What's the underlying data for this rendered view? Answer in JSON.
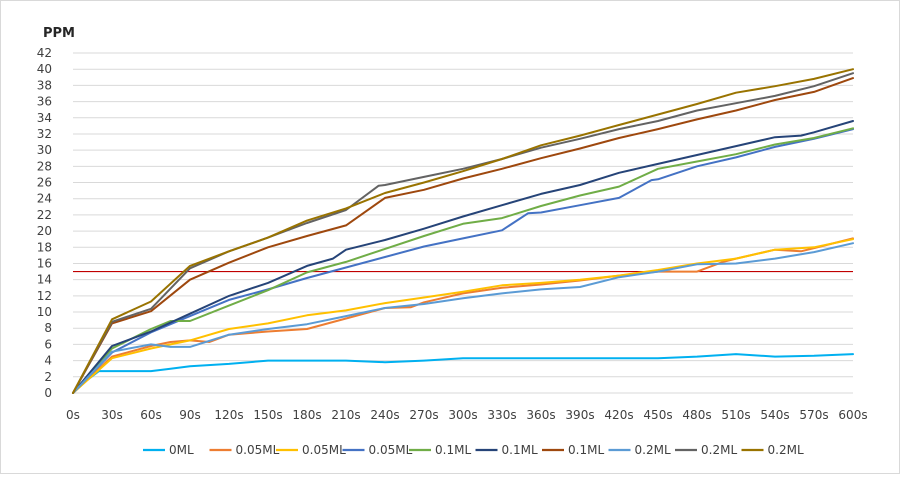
{
  "chart_data": {
    "type": "line",
    "ylabel": "PPM",
    "xlabel": "",
    "ylim": [
      0,
      42
    ],
    "yticks": [
      0,
      2,
      4,
      6,
      8,
      10,
      12,
      14,
      16,
      18,
      20,
      22,
      24,
      26,
      28,
      30,
      32,
      34,
      36,
      38,
      40,
      42
    ],
    "grid": true,
    "legend": "bottom",
    "x": [
      0,
      30,
      60,
      90,
      120,
      150,
      180,
      210,
      240,
      270,
      300,
      330,
      360,
      390,
      420,
      450,
      480,
      510,
      540,
      570,
      600
    ],
    "x_tick_labels": [
      "0s",
      "30s",
      "60s",
      "90s",
      "120s",
      "150s",
      "180s",
      "210s",
      "240s",
      "270s",
      "300s",
      "330s",
      "360s",
      "390s",
      "420s",
      "450s",
      "480s",
      "510s",
      "540s",
      "570s",
      "600s"
    ],
    "reference_line": {
      "y": 15,
      "color": "#c00000"
    },
    "series": [
      {
        "name": "0ML",
        "color": "#00b0f0",
        "points": [
          [
            0,
            0
          ],
          [
            10,
            1.5
          ],
          [
            20,
            2.7
          ],
          [
            30,
            2.7
          ],
          [
            45,
            2.7
          ],
          [
            60,
            2.7
          ],
          [
            75,
            3.0
          ],
          [
            90,
            3.3
          ],
          [
            120,
            3.6
          ],
          [
            150,
            4.0
          ],
          [
            180,
            4.0
          ],
          [
            210,
            4.0
          ],
          [
            240,
            3.8
          ],
          [
            270,
            4.0
          ],
          [
            300,
            4.3
          ],
          [
            330,
            4.3
          ],
          [
            360,
            4.3
          ],
          [
            390,
            4.3
          ],
          [
            420,
            4.3
          ],
          [
            450,
            4.3
          ],
          [
            480,
            4.5
          ],
          [
            510,
            4.8
          ],
          [
            540,
            4.5
          ],
          [
            570,
            4.6
          ],
          [
            600,
            4.8
          ]
        ]
      },
      {
        "name": "0.05ML",
        "color": "#ed7d31",
        "points": [
          [
            0,
            0
          ],
          [
            30,
            4.5
          ],
          [
            60,
            5.8
          ],
          [
            75,
            6.3
          ],
          [
            90,
            6.5
          ],
          [
            105,
            6.3
          ],
          [
            120,
            7.2
          ],
          [
            150,
            7.6
          ],
          [
            180,
            7.9
          ],
          [
            210,
            9.2
          ],
          [
            240,
            10.5
          ],
          [
            260,
            10.6
          ],
          [
            270,
            11.2
          ],
          [
            300,
            12.3
          ],
          [
            330,
            13.0
          ],
          [
            360,
            13.4
          ],
          [
            390,
            13.9
          ],
          [
            420,
            14.5
          ],
          [
            450,
            15.0
          ],
          [
            480,
            15.0
          ],
          [
            500,
            16.2
          ],
          [
            510,
            16.6
          ],
          [
            540,
            17.7
          ],
          [
            560,
            17.5
          ],
          [
            570,
            17.9
          ],
          [
            600,
            19.1
          ]
        ]
      },
      {
        "name": "0.05ML",
        "color": "#ffc000",
        "points": [
          [
            0,
            0
          ],
          [
            30,
            4.3
          ],
          [
            60,
            5.5
          ],
          [
            75,
            6.0
          ],
          [
            90,
            6.5
          ],
          [
            120,
            7.9
          ],
          [
            150,
            8.6
          ],
          [
            180,
            9.6
          ],
          [
            210,
            10.2
          ],
          [
            240,
            11.1
          ],
          [
            270,
            11.8
          ],
          [
            300,
            12.5
          ],
          [
            330,
            13.3
          ],
          [
            360,
            13.6
          ],
          [
            390,
            14.0
          ],
          [
            420,
            14.5
          ],
          [
            450,
            15.2
          ],
          [
            480,
            16.0
          ],
          [
            510,
            16.6
          ],
          [
            540,
            17.7
          ],
          [
            570,
            18.0
          ],
          [
            600,
            19.0
          ]
        ]
      },
      {
        "name": "0.05ML",
        "color": "#4472c4",
        "points": [
          [
            0,
            0
          ],
          [
            30,
            5.0
          ],
          [
            60,
            7.5
          ],
          [
            90,
            9.5
          ],
          [
            120,
            11.5
          ],
          [
            150,
            12.8
          ],
          [
            180,
            14.2
          ],
          [
            210,
            15.5
          ],
          [
            240,
            16.8
          ],
          [
            270,
            18.1
          ],
          [
            300,
            19.1
          ],
          [
            330,
            20.1
          ],
          [
            350,
            22.2
          ],
          [
            360,
            22.3
          ],
          [
            390,
            23.2
          ],
          [
            420,
            24.1
          ],
          [
            445,
            26.3
          ],
          [
            450,
            26.4
          ],
          [
            480,
            28.0
          ],
          [
            510,
            29.1
          ],
          [
            540,
            30.4
          ],
          [
            570,
            31.4
          ],
          [
            600,
            32.6
          ]
        ]
      },
      {
        "name": "0.1ML",
        "color": "#70ad47",
        "points": [
          [
            0,
            0
          ],
          [
            30,
            5.5
          ],
          [
            60,
            7.9
          ],
          [
            75,
            8.9
          ],
          [
            90,
            8.9
          ],
          [
            120,
            10.8
          ],
          [
            150,
            12.7
          ],
          [
            180,
            14.9
          ],
          [
            210,
            16.2
          ],
          [
            240,
            17.8
          ],
          [
            270,
            19.4
          ],
          [
            300,
            20.9
          ],
          [
            330,
            21.6
          ],
          [
            360,
            23.1
          ],
          [
            390,
            24.4
          ],
          [
            420,
            25.5
          ],
          [
            450,
            27.7
          ],
          [
            480,
            28.6
          ],
          [
            510,
            29.5
          ],
          [
            540,
            30.7
          ],
          [
            570,
            31.5
          ],
          [
            600,
            32.7
          ]
        ]
      },
      {
        "name": "0.1ML",
        "color": "#264478",
        "points": [
          [
            0,
            0
          ],
          [
            30,
            5.8
          ],
          [
            60,
            7.6
          ],
          [
            90,
            9.8
          ],
          [
            120,
            12.0
          ],
          [
            150,
            13.6
          ],
          [
            180,
            15.7
          ],
          [
            200,
            16.6
          ],
          [
            210,
            17.7
          ],
          [
            240,
            18.9
          ],
          [
            270,
            20.3
          ],
          [
            300,
            21.8
          ],
          [
            330,
            23.2
          ],
          [
            360,
            24.6
          ],
          [
            390,
            25.7
          ],
          [
            420,
            27.2
          ],
          [
            450,
            28.3
          ],
          [
            480,
            29.4
          ],
          [
            510,
            30.5
          ],
          [
            540,
            31.6
          ],
          [
            560,
            31.8
          ],
          [
            570,
            32.2
          ],
          [
            600,
            33.6
          ]
        ]
      },
      {
        "name": "0.1ML",
        "color": "#9e480e",
        "points": [
          [
            0,
            0
          ],
          [
            30,
            8.6
          ],
          [
            60,
            10.1
          ],
          [
            90,
            14.0
          ],
          [
            120,
            16.1
          ],
          [
            150,
            18.0
          ],
          [
            180,
            19.4
          ],
          [
            210,
            20.7
          ],
          [
            240,
            24.1
          ],
          [
            270,
            25.1
          ],
          [
            300,
            26.5
          ],
          [
            330,
            27.7
          ],
          [
            360,
            29.0
          ],
          [
            390,
            30.2
          ],
          [
            420,
            31.5
          ],
          [
            450,
            32.6
          ],
          [
            480,
            33.8
          ],
          [
            510,
            34.9
          ],
          [
            540,
            36.2
          ],
          [
            570,
            37.2
          ],
          [
            600,
            38.9
          ]
        ]
      },
      {
        "name": "0.2ML",
        "color": "#5b9bd5",
        "points": [
          [
            0,
            0
          ],
          [
            30,
            5.1
          ],
          [
            60,
            6.0
          ],
          [
            75,
            5.7
          ],
          [
            90,
            5.7
          ],
          [
            120,
            7.2
          ],
          [
            150,
            7.9
          ],
          [
            180,
            8.5
          ],
          [
            210,
            9.5
          ],
          [
            240,
            10.5
          ],
          [
            270,
            11.0
          ],
          [
            300,
            11.7
          ],
          [
            330,
            12.3
          ],
          [
            360,
            12.8
          ],
          [
            390,
            13.1
          ],
          [
            420,
            14.3
          ],
          [
            450,
            15.0
          ],
          [
            480,
            15.9
          ],
          [
            510,
            16.0
          ],
          [
            540,
            16.6
          ],
          [
            570,
            17.4
          ],
          [
            600,
            18.5
          ]
        ]
      },
      {
        "name": "0.2ML",
        "color": "#636363",
        "points": [
          [
            0,
            0
          ],
          [
            30,
            8.8
          ],
          [
            60,
            10.4
          ],
          [
            90,
            15.4
          ],
          [
            120,
            17.5
          ],
          [
            150,
            19.2
          ],
          [
            180,
            21.0
          ],
          [
            210,
            22.6
          ],
          [
            235,
            25.6
          ],
          [
            240,
            25.7
          ],
          [
            270,
            26.7
          ],
          [
            300,
            27.7
          ],
          [
            330,
            28.9
          ],
          [
            360,
            30.3
          ],
          [
            390,
            31.4
          ],
          [
            420,
            32.6
          ],
          [
            450,
            33.6
          ],
          [
            480,
            34.9
          ],
          [
            510,
            35.8
          ],
          [
            540,
            36.7
          ],
          [
            570,
            37.9
          ],
          [
            600,
            39.5
          ]
        ]
      },
      {
        "name": "0.2ML",
        "color": "#997300",
        "points": [
          [
            0,
            0
          ],
          [
            30,
            9.1
          ],
          [
            60,
            11.3
          ],
          [
            90,
            15.7
          ],
          [
            120,
            17.5
          ],
          [
            150,
            19.2
          ],
          [
            180,
            21.3
          ],
          [
            210,
            22.8
          ],
          [
            240,
            24.7
          ],
          [
            270,
            26.0
          ],
          [
            300,
            27.4
          ],
          [
            330,
            28.9
          ],
          [
            360,
            30.6
          ],
          [
            390,
            31.8
          ],
          [
            420,
            33.1
          ],
          [
            450,
            34.4
          ],
          [
            480,
            35.7
          ],
          [
            510,
            37.1
          ],
          [
            540,
            37.9
          ],
          [
            570,
            38.8
          ],
          [
            600,
            40.0
          ]
        ]
      }
    ]
  }
}
